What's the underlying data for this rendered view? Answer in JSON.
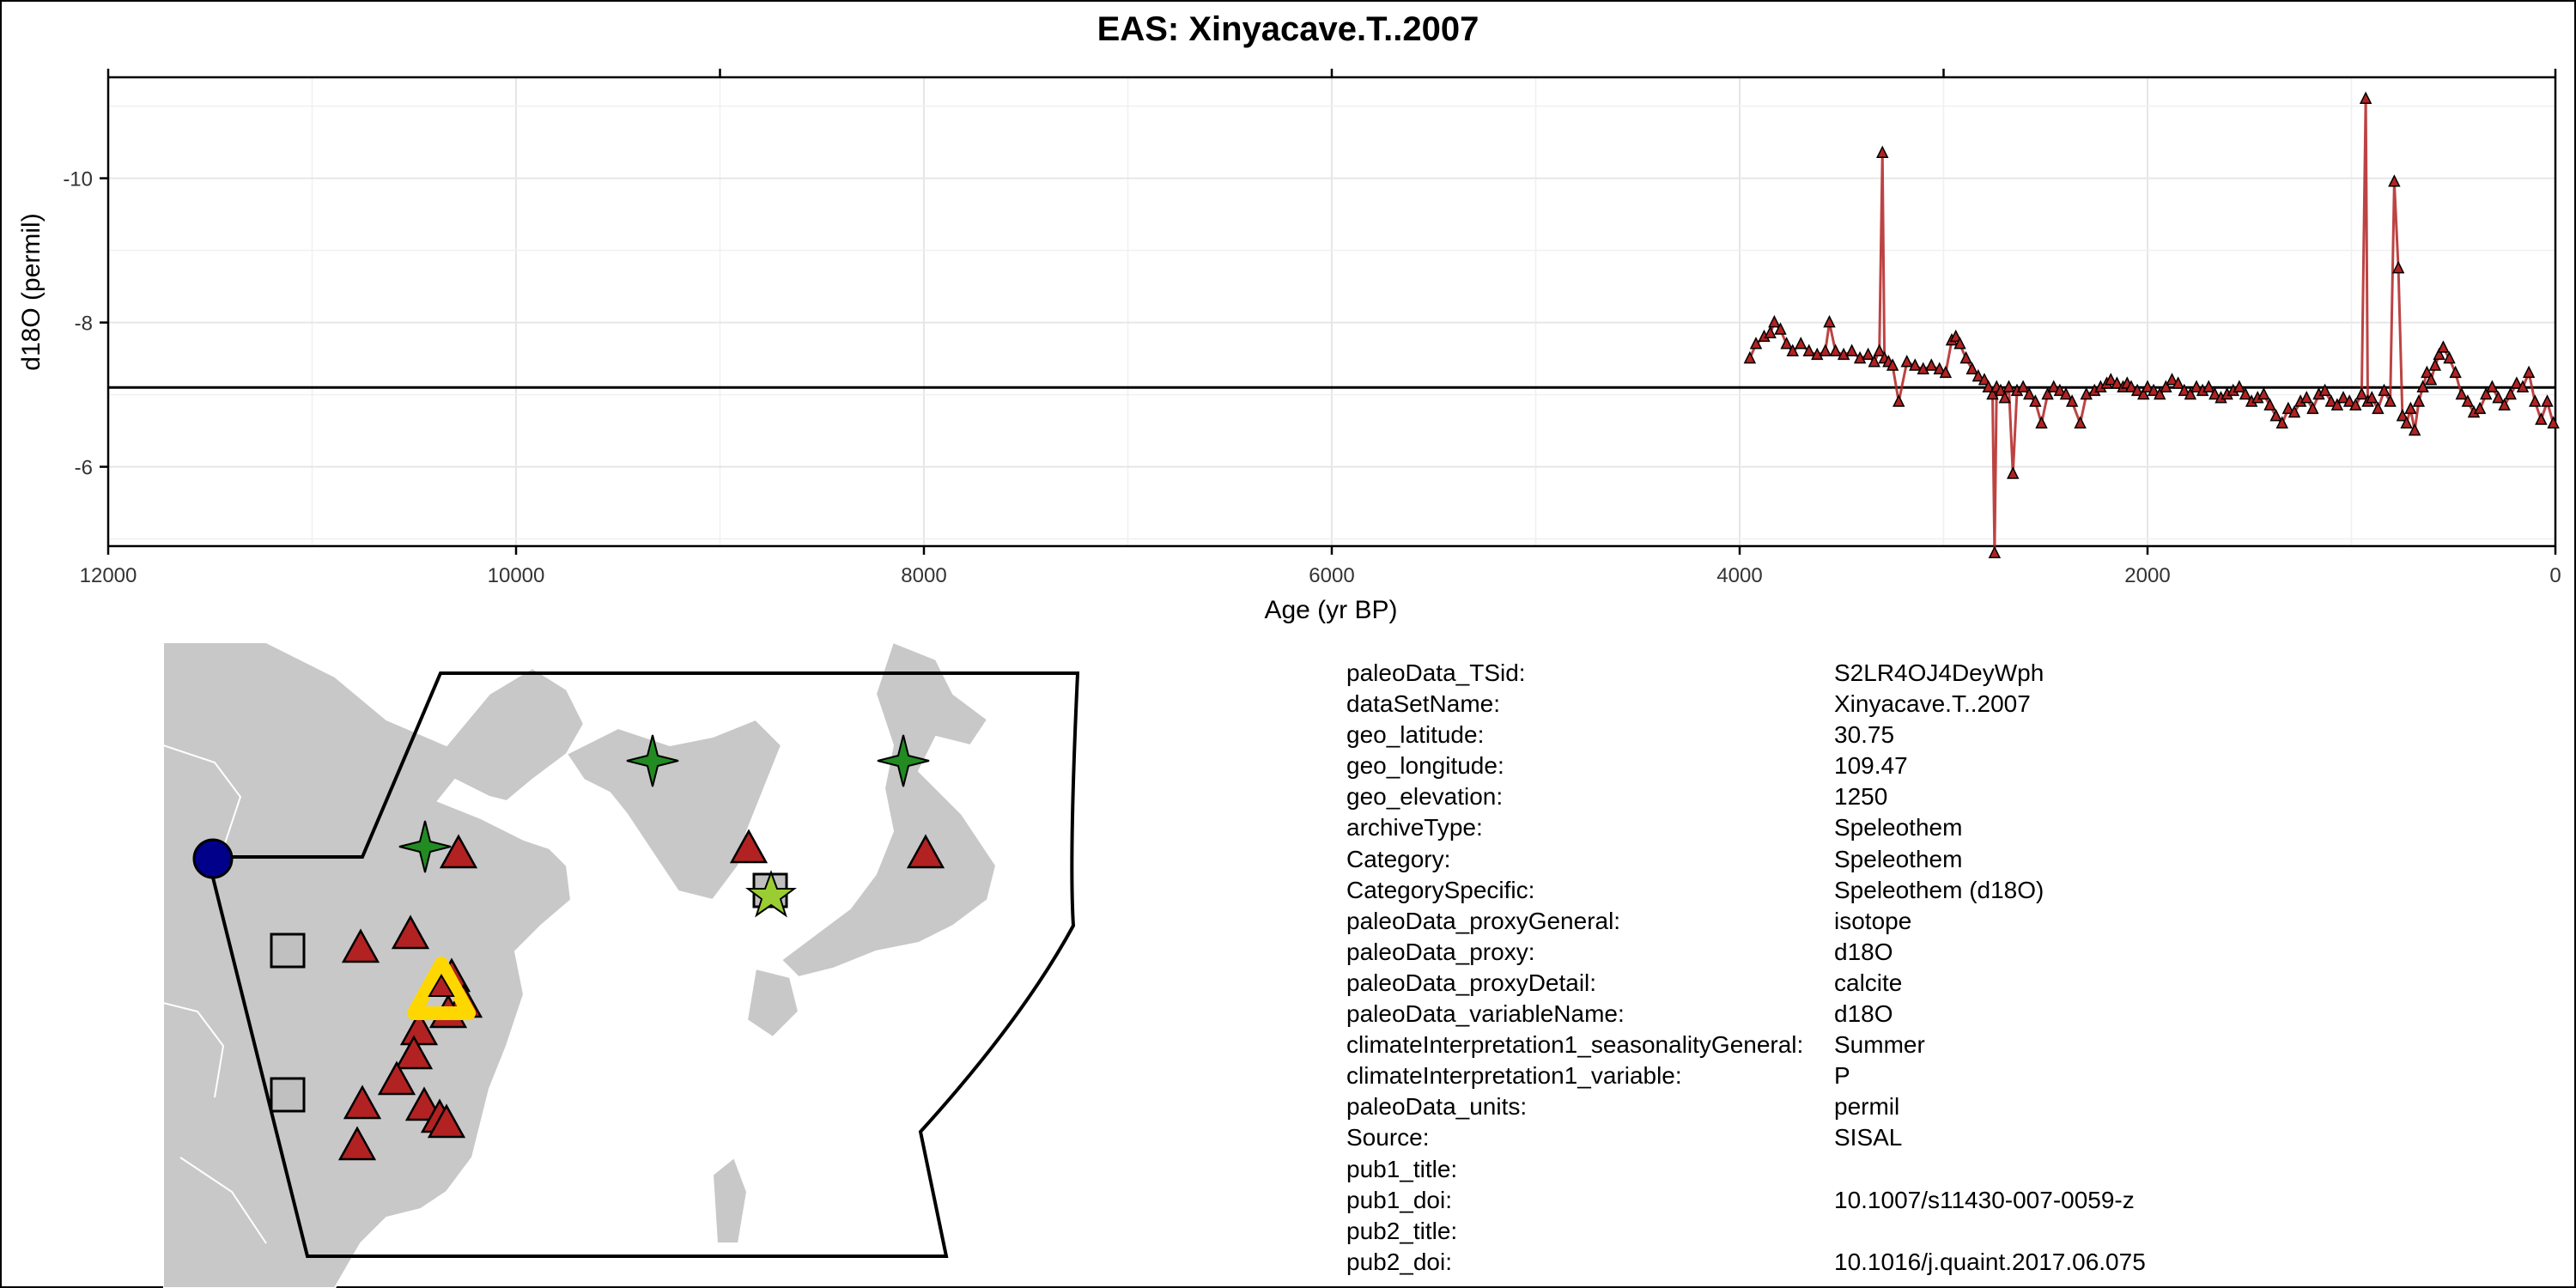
{
  "chart_data": {
    "type": "line",
    "title": "EAS: Xinyacave.T..2007",
    "xlabel": "Age (yr BP)",
    "ylabel": "d18O (permil)",
    "xlim": [
      12000,
      0
    ],
    "ylim": [
      -4.9,
      -11.4
    ],
    "y_reversed": true,
    "x_ticks": [
      "12000",
      "10000",
      "8000",
      "6000",
      "4000",
      "2000",
      "0"
    ],
    "y_ticks": [
      "-10",
      "-8",
      "-6"
    ],
    "x_tick_values": [
      12000,
      10000,
      8000,
      6000,
      4000,
      2000,
      0
    ],
    "y_tick_values": [
      -10,
      -8,
      -6
    ],
    "reference_line_y": -7.1,
    "grid": true,
    "series": [
      {
        "marker": "triangle",
        "color": "#b22222",
        "x": [
          3950,
          3920,
          3880,
          3850,
          3830,
          3800,
          3770,
          3740,
          3700,
          3660,
          3620,
          3580,
          3560,
          3530,
          3490,
          3450,
          3410,
          3370,
          3340,
          3315,
          3300,
          3290,
          3270,
          3250,
          3220,
          3180,
          3140,
          3100,
          3060,
          3020,
          2990,
          2960,
          2940,
          2920,
          2890,
          2860,
          2830,
          2800,
          2780,
          2760,
          2750,
          2740,
          2720,
          2700,
          2680,
          2660,
          2640,
          2610,
          2580,
          2550,
          2520,
          2490,
          2460,
          2430,
          2400,
          2370,
          2330,
          2300,
          2260,
          2230,
          2200,
          2180,
          2150,
          2120,
          2100,
          2080,
          2050,
          2020,
          2000,
          1970,
          1940,
          1910,
          1880,
          1850,
          1820,
          1790,
          1760,
          1730,
          1700,
          1670,
          1640,
          1610,
          1580,
          1550,
          1520,
          1490,
          1460,
          1430,
          1400,
          1370,
          1340,
          1310,
          1280,
          1250,
          1220,
          1190,
          1160,
          1130,
          1100,
          1070,
          1040,
          1010,
          980,
          950,
          930,
          920,
          900,
          870,
          840,
          810,
          790,
          770,
          750,
          730,
          710,
          690,
          670,
          650,
          630,
          610,
          590,
          570,
          550,
          520,
          490,
          460,
          430,
          400,
          370,
          340,
          310,
          280,
          250,
          220,
          190,
          160,
          130,
          100,
          70,
          40,
          10
        ],
        "y": [
          -7.5,
          -7.7,
          -7.8,
          -7.85,
          -8.0,
          -7.9,
          -7.7,
          -7.6,
          -7.7,
          -7.6,
          -7.55,
          -7.6,
          -8.0,
          -7.6,
          -7.55,
          -7.6,
          -7.5,
          -7.55,
          -7.45,
          -7.6,
          -10.35,
          -7.5,
          -7.45,
          -7.4,
          -6.9,
          -7.45,
          -7.4,
          -7.35,
          -7.4,
          -7.35,
          -7.3,
          -7.75,
          -7.8,
          -7.7,
          -7.5,
          -7.35,
          -7.25,
          -7.2,
          -7.1,
          -7.0,
          -4.8,
          -7.1,
          -7.05,
          -6.95,
          -7.1,
          -5.9,
          -7.05,
          -7.1,
          -7.0,
          -6.9,
          -6.6,
          -7.0,
          -7.1,
          -7.05,
          -7.0,
          -6.9,
          -6.6,
          -7.0,
          -7.05,
          -7.1,
          -7.15,
          -7.2,
          -7.15,
          -7.1,
          -7.15,
          -7.1,
          -7.05,
          -7.0,
          -7.1,
          -7.05,
          -7.0,
          -7.1,
          -7.2,
          -7.15,
          -7.05,
          -7.0,
          -7.1,
          -7.05,
          -7.1,
          -7.0,
          -6.95,
          -7.0,
          -7.05,
          -7.1,
          -7.0,
          -6.9,
          -6.95,
          -7.0,
          -6.85,
          -6.7,
          -6.6,
          -6.8,
          -6.75,
          -6.9,
          -6.95,
          -6.8,
          -7.0,
          -7.05,
          -6.9,
          -6.85,
          -6.95,
          -6.9,
          -6.85,
          -7.0,
          -11.1,
          -6.9,
          -6.95,
          -6.8,
          -7.05,
          -6.9,
          -9.95,
          -8.75,
          -6.7,
          -6.6,
          -6.8,
          -6.5,
          -6.9,
          -7.1,
          -7.3,
          -7.2,
          -7.4,
          -7.55,
          -7.65,
          -7.5,
          -7.3,
          -7.0,
          -6.9,
          -6.75,
          -6.8,
          -7.0,
          -7.1,
          -6.95,
          -6.85,
          -7.0,
          -7.15,
          -7.1,
          -7.3,
          -6.9,
          -6.65,
          -6.9,
          -6.6
        ]
      }
    ]
  },
  "map": {
    "legend": [],
    "markers": [
      {
        "kind": "circle",
        "color": "#00008b",
        "role": "edge marker"
      },
      {
        "kind": "star",
        "color": "#228b22",
        "count": 3
      },
      {
        "kind": "star",
        "color": "#9acd32",
        "count": 1
      },
      {
        "kind": "square",
        "color": "#c0c0c0",
        "count": 3
      },
      {
        "kind": "triangle",
        "color": "#b22222",
        "count": 18
      },
      {
        "kind": "highlight-triangle",
        "color": "#ffd700",
        "label": "selected site"
      }
    ],
    "land_color": "#c8c8c8",
    "sea_color": "#ffffff"
  },
  "metadata": [
    {
      "key": "paleoData_TSid:",
      "value": "S2LR4OJ4DeyWph"
    },
    {
      "key": "dataSetName:",
      "value": "Xinyacave.T..2007"
    },
    {
      "key": "geo_latitude:",
      "value": "30.75"
    },
    {
      "key": "geo_longitude:",
      "value": "109.47"
    },
    {
      "key": "geo_elevation:",
      "value": "1250"
    },
    {
      "key": "archiveType:",
      "value": "Speleothem"
    },
    {
      "key": "Category:",
      "value": "Speleothem"
    },
    {
      "key": "CategorySpecific:",
      "value": "Speleothem (d18O)"
    },
    {
      "key": "paleoData_proxyGeneral:",
      "value": "isotope"
    },
    {
      "key": "paleoData_proxy:",
      "value": "d18O"
    },
    {
      "key": "paleoData_proxyDetail:",
      "value": "calcite"
    },
    {
      "key": "paleoData_variableName:",
      "value": "d18O"
    },
    {
      "key": "climateInterpretation1_seasonalityGeneral:",
      "value": "Summer"
    },
    {
      "key": "climateInterpretation1_variable:",
      "value": "P"
    },
    {
      "key": "paleoData_units:",
      "value": "permil"
    },
    {
      "key": "Source:",
      "value": "SISAL"
    },
    {
      "key": "pub1_title:",
      "value": ""
    },
    {
      "key": "pub1_doi:",
      "value": "10.1007/s11430-007-0059-z"
    },
    {
      "key": "pub2_title:",
      "value": ""
    },
    {
      "key": "pub2_doi:",
      "value": "10.1016/j.quaint.2017.06.075"
    }
  ]
}
